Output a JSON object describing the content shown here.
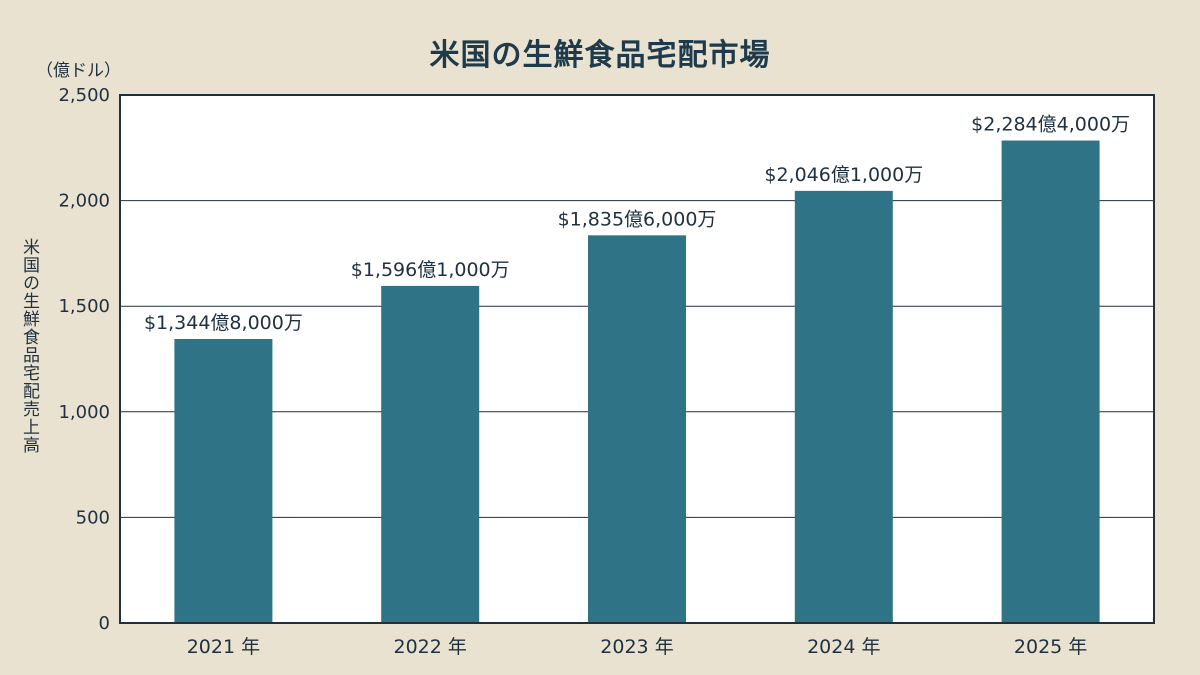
{
  "chart_data": {
    "type": "bar",
    "title": "米国の生鮮食品宅配市場",
    "unit_label": "（億ドル）",
    "ylabel": "米国の生鮮食品宅配売上高",
    "xlabel": "",
    "categories": [
      "2021 年",
      "2022 年",
      "2023 年",
      "2024 年",
      "2025 年"
    ],
    "values": [
      1344.8,
      1596.1,
      1835.6,
      2046.1,
      2284.4
    ],
    "data_labels": [
      "$1,344億8,000万",
      "$1,596億1,000万",
      "$1,835億6,000万",
      "$2,046億1,000万",
      "$2,284億4,000万"
    ],
    "ylim": [
      0,
      2500
    ],
    "yticks": [
      0,
      500,
      1000,
      1500,
      2000,
      2500
    ],
    "ytick_labels": [
      "0",
      "500",
      "1,000",
      "1,500",
      "2,000",
      "2,500"
    ],
    "grid": true,
    "colors": {
      "bar": "#2f7486",
      "background": "#e9e2d0",
      "plot_background": "#ffffff",
      "frame": "#1f3140"
    }
  }
}
